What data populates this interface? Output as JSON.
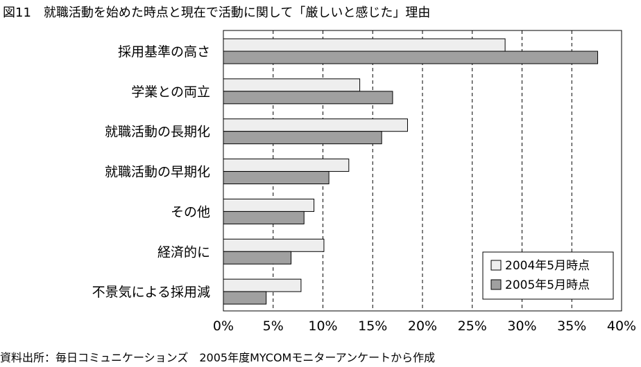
{
  "title": "図11　就職活動を始めた時点と現在で活動に関して「厳しいと感じた」理由",
  "source": "資料出所：毎日コミュニケーションズ　2005年度MYCOMモニターアンケートから作成",
  "colors": {
    "series_2004": "#eeeeee",
    "series_2005": "#a0a0a0",
    "stroke": "#000000",
    "grid": "#000000"
  },
  "chart_data": {
    "type": "bar",
    "orientation": "horizontal",
    "title": "図11　就職活動を始めた時点と現在で活動に関して「厳しいと感じた」理由",
    "xlabel": "",
    "ylabel": "",
    "categories": [
      "採用基準の高さ",
      "学業との両立",
      "就職活動の長期化",
      "就職活動の早期化",
      "その他",
      "経済的に",
      "不景気による採用減"
    ],
    "series": [
      {
        "name": "2004年5月時点",
        "values": [
          28.3,
          13.7,
          18.5,
          12.6,
          9.1,
          10.1,
          7.8
        ]
      },
      {
        "name": "2005年5月時点",
        "values": [
          37.6,
          17.0,
          15.9,
          10.6,
          8.1,
          6.8,
          4.3
        ]
      }
    ],
    "xlim": [
      0,
      40
    ],
    "ticks": [
      0,
      5,
      10,
      15,
      20,
      25,
      30,
      35,
      40
    ],
    "tick_labels": [
      "0%",
      "5%",
      "10%",
      "15%",
      "20%",
      "25%",
      "30%",
      "35%",
      "40%"
    ],
    "grid": "vertical dashed",
    "legend_position": "bottom-right"
  }
}
